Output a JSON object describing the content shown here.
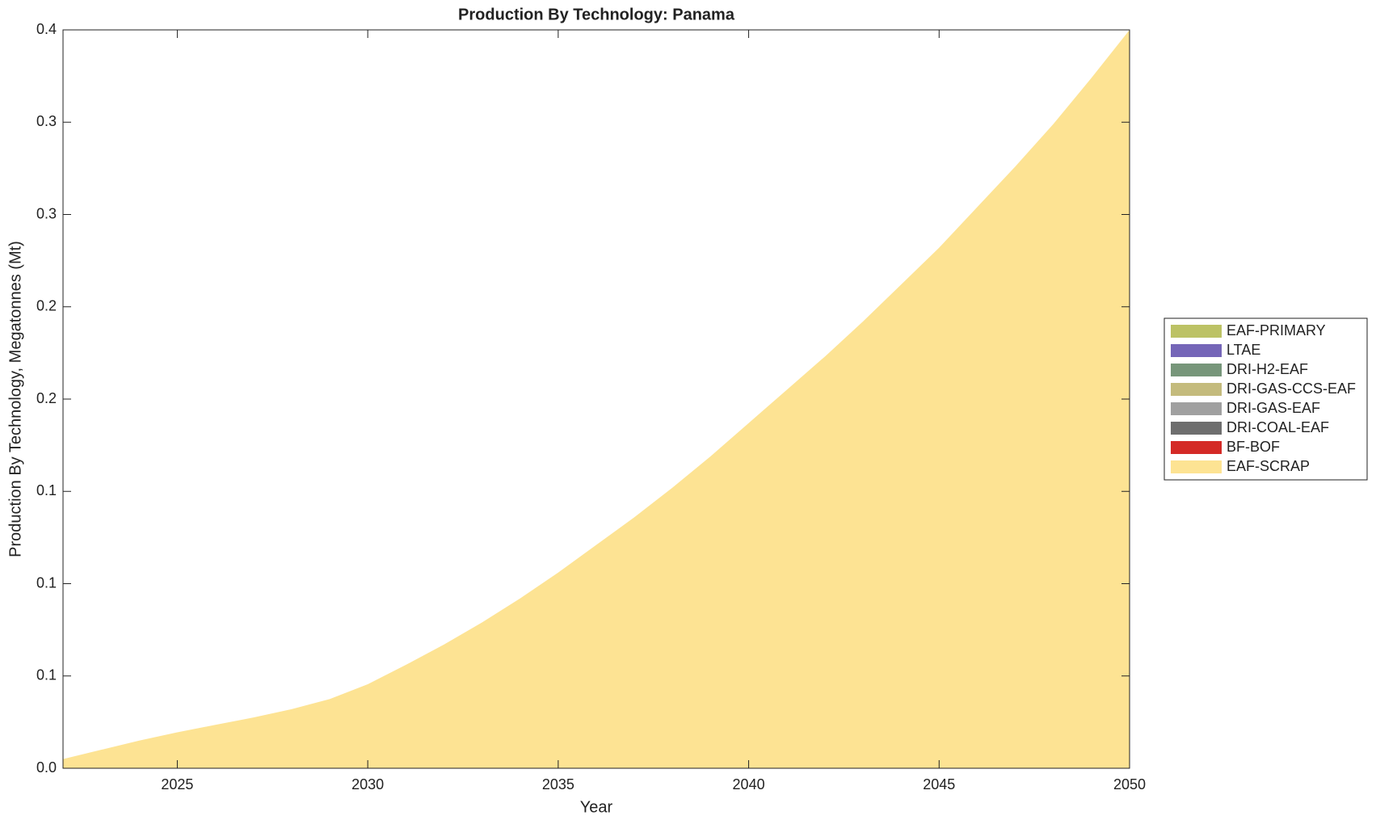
{
  "chart_data": {
    "type": "area",
    "title": "Production By Technology: Panama",
    "xlabel": "Year",
    "ylabel": "Production By Technology, Megatonnes (Mt)",
    "x": [
      2022,
      2023,
      2024,
      2025,
      2026,
      2027,
      2028,
      2029,
      2030,
      2031,
      2032,
      2033,
      2034,
      2035,
      2036,
      2037,
      2038,
      2039,
      2040,
      2041,
      2042,
      2043,
      2044,
      2045,
      2046,
      2047,
      2048,
      2049,
      2050
    ],
    "xlim": [
      2022,
      2050
    ],
    "xticks": [
      2025,
      2030,
      2035,
      2040,
      2045,
      2050
    ],
    "ylim": [
      0,
      0.4
    ],
    "yticks": [
      {
        "value": 0,
        "label": "0.0"
      },
      {
        "value": 0.05,
        "label": "0.1"
      },
      {
        "value": 0.1,
        "label": "0.1"
      },
      {
        "value": 0.15,
        "label": "0.1"
      },
      {
        "value": 0.2,
        "label": "0.2"
      },
      {
        "value": 0.25,
        "label": "0.2"
      },
      {
        "value": 0.3,
        "label": "0.3"
      },
      {
        "value": 0.35,
        "label": "0.3"
      },
      {
        "value": 0.4,
        "label": "0.4"
      }
    ],
    "legend": "right",
    "series": [
      {
        "name": "EAF-PRIMARY",
        "color": "#bcc265",
        "values": [
          0,
          0,
          0,
          0,
          0,
          0,
          0,
          0,
          0,
          0,
          0,
          0,
          0,
          0,
          0,
          0,
          0,
          0,
          0,
          0,
          0,
          0,
          0,
          0,
          0,
          0,
          0,
          0,
          0
        ]
      },
      {
        "name": "LTAE",
        "color": "#7566b8",
        "values": [
          0,
          0,
          0,
          0,
          0,
          0,
          0,
          0,
          0,
          0,
          0,
          0,
          0,
          0,
          0,
          0,
          0,
          0,
          0,
          0,
          0,
          0,
          0,
          0,
          0,
          0,
          0,
          0,
          0
        ]
      },
      {
        "name": "DRI-H2-EAF",
        "color": "#77967a",
        "values": [
          0,
          0,
          0,
          0,
          0,
          0,
          0,
          0,
          0,
          0,
          0,
          0,
          0,
          0,
          0,
          0,
          0,
          0,
          0,
          0,
          0,
          0,
          0,
          0,
          0,
          0,
          0,
          0,
          0
        ]
      },
      {
        "name": "DRI-GAS-CCS-EAF",
        "color": "#c4bb7d",
        "values": [
          0,
          0,
          0,
          0,
          0,
          0,
          0,
          0,
          0,
          0,
          0,
          0,
          0,
          0,
          0,
          0,
          0,
          0,
          0,
          0,
          0,
          0,
          0,
          0,
          0,
          0,
          0,
          0,
          0
        ]
      },
      {
        "name": "DRI-GAS-EAF",
        "color": "#a0a0a0",
        "values": [
          0,
          0,
          0,
          0,
          0,
          0,
          0,
          0,
          0,
          0,
          0,
          0,
          0,
          0,
          0,
          0,
          0,
          0,
          0,
          0,
          0,
          0,
          0,
          0,
          0,
          0,
          0,
          0,
          0
        ]
      },
      {
        "name": "DRI-COAL-EAF",
        "color": "#6e6e6e",
        "values": [
          0,
          0,
          0,
          0,
          0,
          0,
          0,
          0,
          0,
          0,
          0,
          0,
          0,
          0,
          0,
          0,
          0,
          0,
          0,
          0,
          0,
          0,
          0,
          0,
          0,
          0,
          0,
          0,
          0
        ]
      },
      {
        "name": "BF-BOF",
        "color": "#d42a26",
        "values": [
          0,
          0,
          0,
          0,
          0,
          0,
          0,
          0,
          0,
          0,
          0,
          0,
          0,
          0,
          0,
          0,
          0,
          0,
          0,
          0,
          0,
          0,
          0,
          0,
          0,
          0,
          0,
          0,
          0
        ]
      },
      {
        "name": "EAF-SCRAP",
        "color": "#fde393",
        "values": [
          0.005,
          0.01,
          0.015,
          0.0195,
          0.0235,
          0.0275,
          0.032,
          0.0375,
          0.0455,
          0.056,
          0.067,
          0.079,
          0.092,
          0.106,
          0.121,
          0.136,
          0.152,
          0.169,
          0.187,
          0.205,
          0.223,
          0.242,
          0.262,
          0.282,
          0.304,
          0.326,
          0.349,
          0.374,
          0.4
        ]
      }
    ]
  }
}
